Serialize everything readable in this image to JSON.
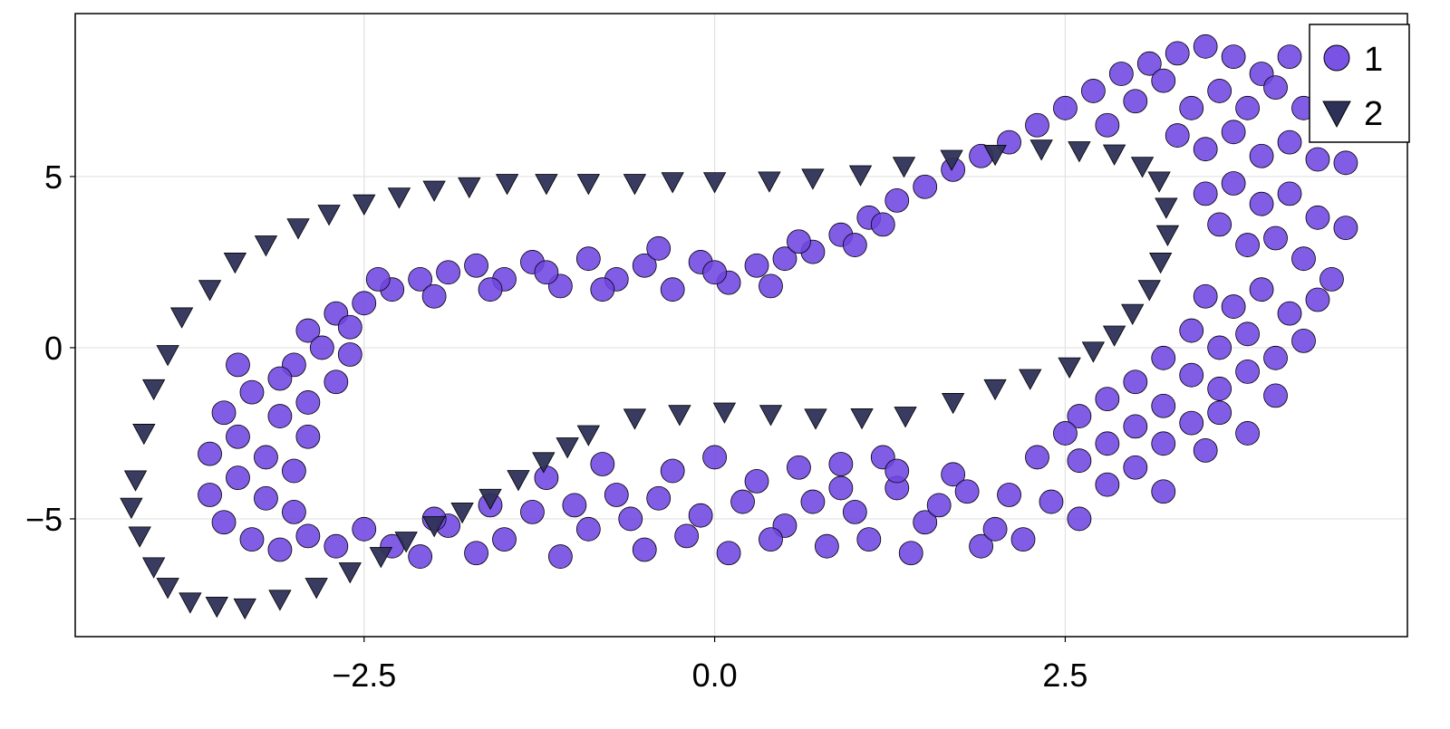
{
  "chart_data": {
    "type": "scatter",
    "title": "",
    "xlabel": "",
    "ylabel": "",
    "xlim": [
      -4.56,
      4.94
    ],
    "ylim": [
      -8.44,
      9.76
    ],
    "grid": true,
    "legend_position": "top-right",
    "xticks": [
      -2.5,
      0,
      2.5
    ],
    "xtick_labels": [
      "−2.5",
      "0.0",
      "2.5"
    ],
    "yticks": [
      -5,
      0,
      5
    ],
    "ytick_labels": [
      "−5",
      "0",
      "5"
    ],
    "series": [
      {
        "name": "1",
        "marker": "circle",
        "color": "#6f45e0",
        "points": [
          [
            -2.9,
            0.5
          ],
          [
            -2.7,
            1.0
          ],
          [
            -2.5,
            1.3
          ],
          [
            -2.3,
            1.7
          ],
          [
            -2.1,
            2.0
          ],
          [
            -1.9,
            2.2
          ],
          [
            -1.7,
            2.4
          ],
          [
            -1.5,
            2.0
          ],
          [
            -1.3,
            2.5
          ],
          [
            -1.1,
            1.8
          ],
          [
            -0.9,
            2.6
          ],
          [
            -0.7,
            2.0
          ],
          [
            -0.5,
            2.4
          ],
          [
            -0.3,
            1.7
          ],
          [
            -0.1,
            2.5
          ],
          [
            0.1,
            1.9
          ],
          [
            0.3,
            2.4
          ],
          [
            0.5,
            2.6
          ],
          [
            0.7,
            2.8
          ],
          [
            0.9,
            3.3
          ],
          [
            1.1,
            3.8
          ],
          [
            1.3,
            4.3
          ],
          [
            1.5,
            4.7
          ],
          [
            1.7,
            5.2
          ],
          [
            1.9,
            5.6
          ],
          [
            2.1,
            6.0
          ],
          [
            -2.4,
            2.0
          ],
          [
            -2.0,
            1.5
          ],
          [
            -1.6,
            1.7
          ],
          [
            -1.2,
            2.2
          ],
          [
            -0.8,
            1.7
          ],
          [
            -0.4,
            2.9
          ],
          [
            0.0,
            2.2
          ],
          [
            0.4,
            1.8
          ],
          [
            0.6,
            3.1
          ],
          [
            1.0,
            3.0
          ],
          [
            1.2,
            3.6
          ],
          [
            -2.8,
            0.0
          ],
          [
            -2.6,
            0.6
          ],
          [
            -3.0,
            -0.5
          ],
          [
            2.3,
            6.5
          ],
          [
            2.5,
            7.0
          ],
          [
            2.7,
            7.5
          ],
          [
            2.9,
            8.0
          ],
          [
            3.1,
            8.3
          ],
          [
            3.3,
            8.6
          ],
          [
            3.5,
            8.8
          ],
          [
            3.7,
            8.5
          ],
          [
            3.9,
            8.0
          ],
          [
            4.1,
            8.5
          ],
          [
            2.8,
            6.5
          ],
          [
            3.0,
            7.2
          ],
          [
            3.2,
            7.8
          ],
          [
            3.4,
            7.0
          ],
          [
            3.6,
            7.5
          ],
          [
            3.8,
            7.0
          ],
          [
            4.0,
            7.6
          ],
          [
            4.2,
            7.0
          ],
          [
            4.4,
            6.5
          ],
          [
            3.3,
            6.2
          ],
          [
            3.5,
            5.8
          ],
          [
            3.7,
            6.3
          ],
          [
            3.9,
            5.6
          ],
          [
            4.1,
            6.0
          ],
          [
            4.3,
            5.5
          ],
          [
            4.5,
            5.4
          ],
          [
            3.5,
            4.5
          ],
          [
            3.7,
            4.8
          ],
          [
            3.9,
            4.2
          ],
          [
            4.1,
            4.5
          ],
          [
            4.3,
            3.8
          ],
          [
            4.5,
            3.5
          ],
          [
            3.6,
            3.6
          ],
          [
            3.8,
            3.0
          ],
          [
            4.0,
            3.2
          ],
          [
            4.2,
            2.6
          ],
          [
            4.4,
            2.0
          ],
          [
            3.5,
            1.5
          ],
          [
            3.7,
            1.2
          ],
          [
            3.9,
            1.7
          ],
          [
            4.1,
            1.0
          ],
          [
            4.3,
            1.4
          ],
          [
            3.4,
            0.5
          ],
          [
            3.6,
            0.0
          ],
          [
            3.8,
            0.4
          ],
          [
            4.0,
            -0.3
          ],
          [
            4.2,
            0.2
          ],
          [
            3.2,
            -0.3
          ],
          [
            3.4,
            -0.8
          ],
          [
            3.6,
            -1.2
          ],
          [
            3.8,
            -0.7
          ],
          [
            4.0,
            -1.4
          ],
          [
            3.0,
            -1.0
          ],
          [
            3.2,
            -1.7
          ],
          [
            3.4,
            -2.2
          ],
          [
            3.6,
            -1.9
          ],
          [
            3.8,
            -2.5
          ],
          [
            2.8,
            -1.5
          ],
          [
            3.0,
            -2.3
          ],
          [
            3.2,
            -2.8
          ],
          [
            3.5,
            -3.0
          ],
          [
            2.6,
            -2.0
          ],
          [
            2.8,
            -2.8
          ],
          [
            3.0,
            -3.5
          ],
          [
            3.2,
            -4.2
          ],
          [
            2.6,
            -3.3
          ],
          [
            2.8,
            -4.0
          ],
          [
            2.4,
            -4.5
          ],
          [
            2.6,
            -5.0
          ],
          [
            2.5,
            -2.5
          ],
          [
            -2.3,
            -5.8
          ],
          [
            -2.1,
            -6.1
          ],
          [
            -1.9,
            -5.2
          ],
          [
            -1.7,
            -6.0
          ],
          [
            -1.5,
            -5.6
          ],
          [
            -1.3,
            -4.8
          ],
          [
            -1.1,
            -6.1
          ],
          [
            -0.9,
            -5.3
          ],
          [
            -0.7,
            -4.3
          ],
          [
            -0.5,
            -5.9
          ],
          [
            -0.3,
            -3.6
          ],
          [
            -0.1,
            -4.9
          ],
          [
            0.1,
            -6.0
          ],
          [
            0.3,
            -3.9
          ],
          [
            0.5,
            -5.2
          ],
          [
            0.7,
            -4.5
          ],
          [
            0.9,
            -3.4
          ],
          [
            1.1,
            -5.6
          ],
          [
            1.3,
            -4.1
          ],
          [
            1.5,
            -5.1
          ],
          [
            1.7,
            -3.7
          ],
          [
            1.9,
            -5.8
          ],
          [
            2.1,
            -4.3
          ],
          [
            2.3,
            -3.2
          ],
          [
            -1.2,
            -3.8
          ],
          [
            -0.8,
            -3.4
          ],
          [
            -0.4,
            -4.4
          ],
          [
            0.0,
            -3.2
          ],
          [
            0.4,
            -5.6
          ],
          [
            0.8,
            -5.8
          ],
          [
            1.2,
            -3.2
          ],
          [
            1.6,
            -4.6
          ],
          [
            2.0,
            -5.3
          ],
          [
            -1.6,
            -4.6
          ],
          [
            -2.0,
            -5.0
          ],
          [
            -0.6,
            -5.0
          ],
          [
            0.2,
            -4.5
          ],
          [
            0.6,
            -3.5
          ],
          [
            1.0,
            -4.8
          ],
          [
            1.4,
            -6.0
          ],
          [
            1.8,
            -4.2
          ],
          [
            2.2,
            -5.6
          ],
          [
            -1.0,
            -4.6
          ],
          [
            -0.2,
            -5.5
          ],
          [
            0.9,
            -4.1
          ],
          [
            1.3,
            -3.6
          ],
          [
            -3.5,
            -5.1
          ],
          [
            -3.3,
            -5.6
          ],
          [
            -3.1,
            -5.9
          ],
          [
            -2.9,
            -5.5
          ],
          [
            -2.7,
            -5.8
          ],
          [
            -3.6,
            -4.3
          ],
          [
            -3.4,
            -3.8
          ],
          [
            -3.2,
            -4.4
          ],
          [
            -3.0,
            -4.8
          ],
          [
            -3.6,
            -3.1
          ],
          [
            -3.4,
            -2.6
          ],
          [
            -3.2,
            -3.2
          ],
          [
            -3.0,
            -3.6
          ],
          [
            -3.5,
            -1.9
          ],
          [
            -3.3,
            -1.3
          ],
          [
            -3.1,
            -2.0
          ],
          [
            -2.9,
            -2.6
          ],
          [
            -3.4,
            -0.5
          ],
          [
            -3.1,
            -0.9
          ],
          [
            -2.9,
            -1.6
          ],
          [
            -2.7,
            -1.0
          ],
          [
            -2.6,
            -0.2
          ],
          [
            -2.5,
            -5.3
          ]
        ]
      },
      {
        "name": "2",
        "marker": "triangle-down",
        "color": "#2e3157",
        "points": [
          [
            -4.16,
            -4.66
          ],
          [
            -4.13,
            -3.86
          ],
          [
            -4.07,
            -2.5
          ],
          [
            -4.0,
            -1.2
          ],
          [
            -3.9,
            -0.2
          ],
          [
            -3.8,
            0.9
          ],
          [
            -3.6,
            1.7
          ],
          [
            -3.42,
            2.5
          ],
          [
            -3.2,
            3.0
          ],
          [
            -2.97,
            3.5
          ],
          [
            -2.75,
            3.9
          ],
          [
            -2.5,
            4.2
          ],
          [
            -2.25,
            4.4
          ],
          [
            -2.0,
            4.6
          ],
          [
            -1.75,
            4.7
          ],
          [
            -1.48,
            4.8
          ],
          [
            -1.2,
            4.8
          ],
          [
            -0.9,
            4.8
          ],
          [
            -0.57,
            4.8
          ],
          [
            -0.3,
            4.85
          ],
          [
            0.0,
            4.85
          ],
          [
            0.39,
            4.87
          ],
          [
            0.7,
            4.95
          ],
          [
            1.04,
            5.05
          ],
          [
            1.35,
            5.3
          ],
          [
            1.69,
            5.5
          ],
          [
            2.0,
            5.65
          ],
          [
            2.33,
            5.8
          ],
          [
            2.6,
            5.75
          ],
          [
            2.85,
            5.66
          ],
          [
            3.05,
            5.3
          ],
          [
            3.17,
            4.87
          ],
          [
            3.22,
            4.1
          ],
          [
            3.23,
            3.3
          ],
          [
            3.18,
            2.5
          ],
          [
            3.1,
            1.7
          ],
          [
            2.98,
            1.0
          ],
          [
            2.85,
            0.37
          ],
          [
            2.7,
            -0.1
          ],
          [
            2.53,
            -0.56
          ],
          [
            2.25,
            -0.9
          ],
          [
            2.0,
            -1.2
          ],
          [
            1.7,
            -1.6
          ],
          [
            1.36,
            -2.0
          ],
          [
            1.05,
            -2.05
          ],
          [
            0.72,
            -2.06
          ],
          [
            0.4,
            -1.95
          ],
          [
            0.07,
            -1.88
          ],
          [
            -0.25,
            -1.95
          ],
          [
            -0.57,
            -2.06
          ],
          [
            -0.9,
            -2.54
          ],
          [
            -1.05,
            -2.9
          ],
          [
            -1.22,
            -3.33
          ],
          [
            -1.4,
            -3.85
          ],
          [
            -1.6,
            -4.4
          ],
          [
            -1.8,
            -4.8
          ],
          [
            -2.0,
            -5.2
          ],
          [
            -2.2,
            -5.65
          ],
          [
            -2.38,
            -6.1
          ],
          [
            -2.6,
            -6.55
          ],
          [
            -2.84,
            -7.0
          ],
          [
            -3.1,
            -7.35
          ],
          [
            -3.35,
            -7.6
          ],
          [
            -3.55,
            -7.55
          ],
          [
            -3.74,
            -7.43
          ],
          [
            -3.9,
            -7.0
          ],
          [
            -4.0,
            -6.4
          ],
          [
            -4.1,
            -5.5
          ]
        ]
      }
    ]
  }
}
